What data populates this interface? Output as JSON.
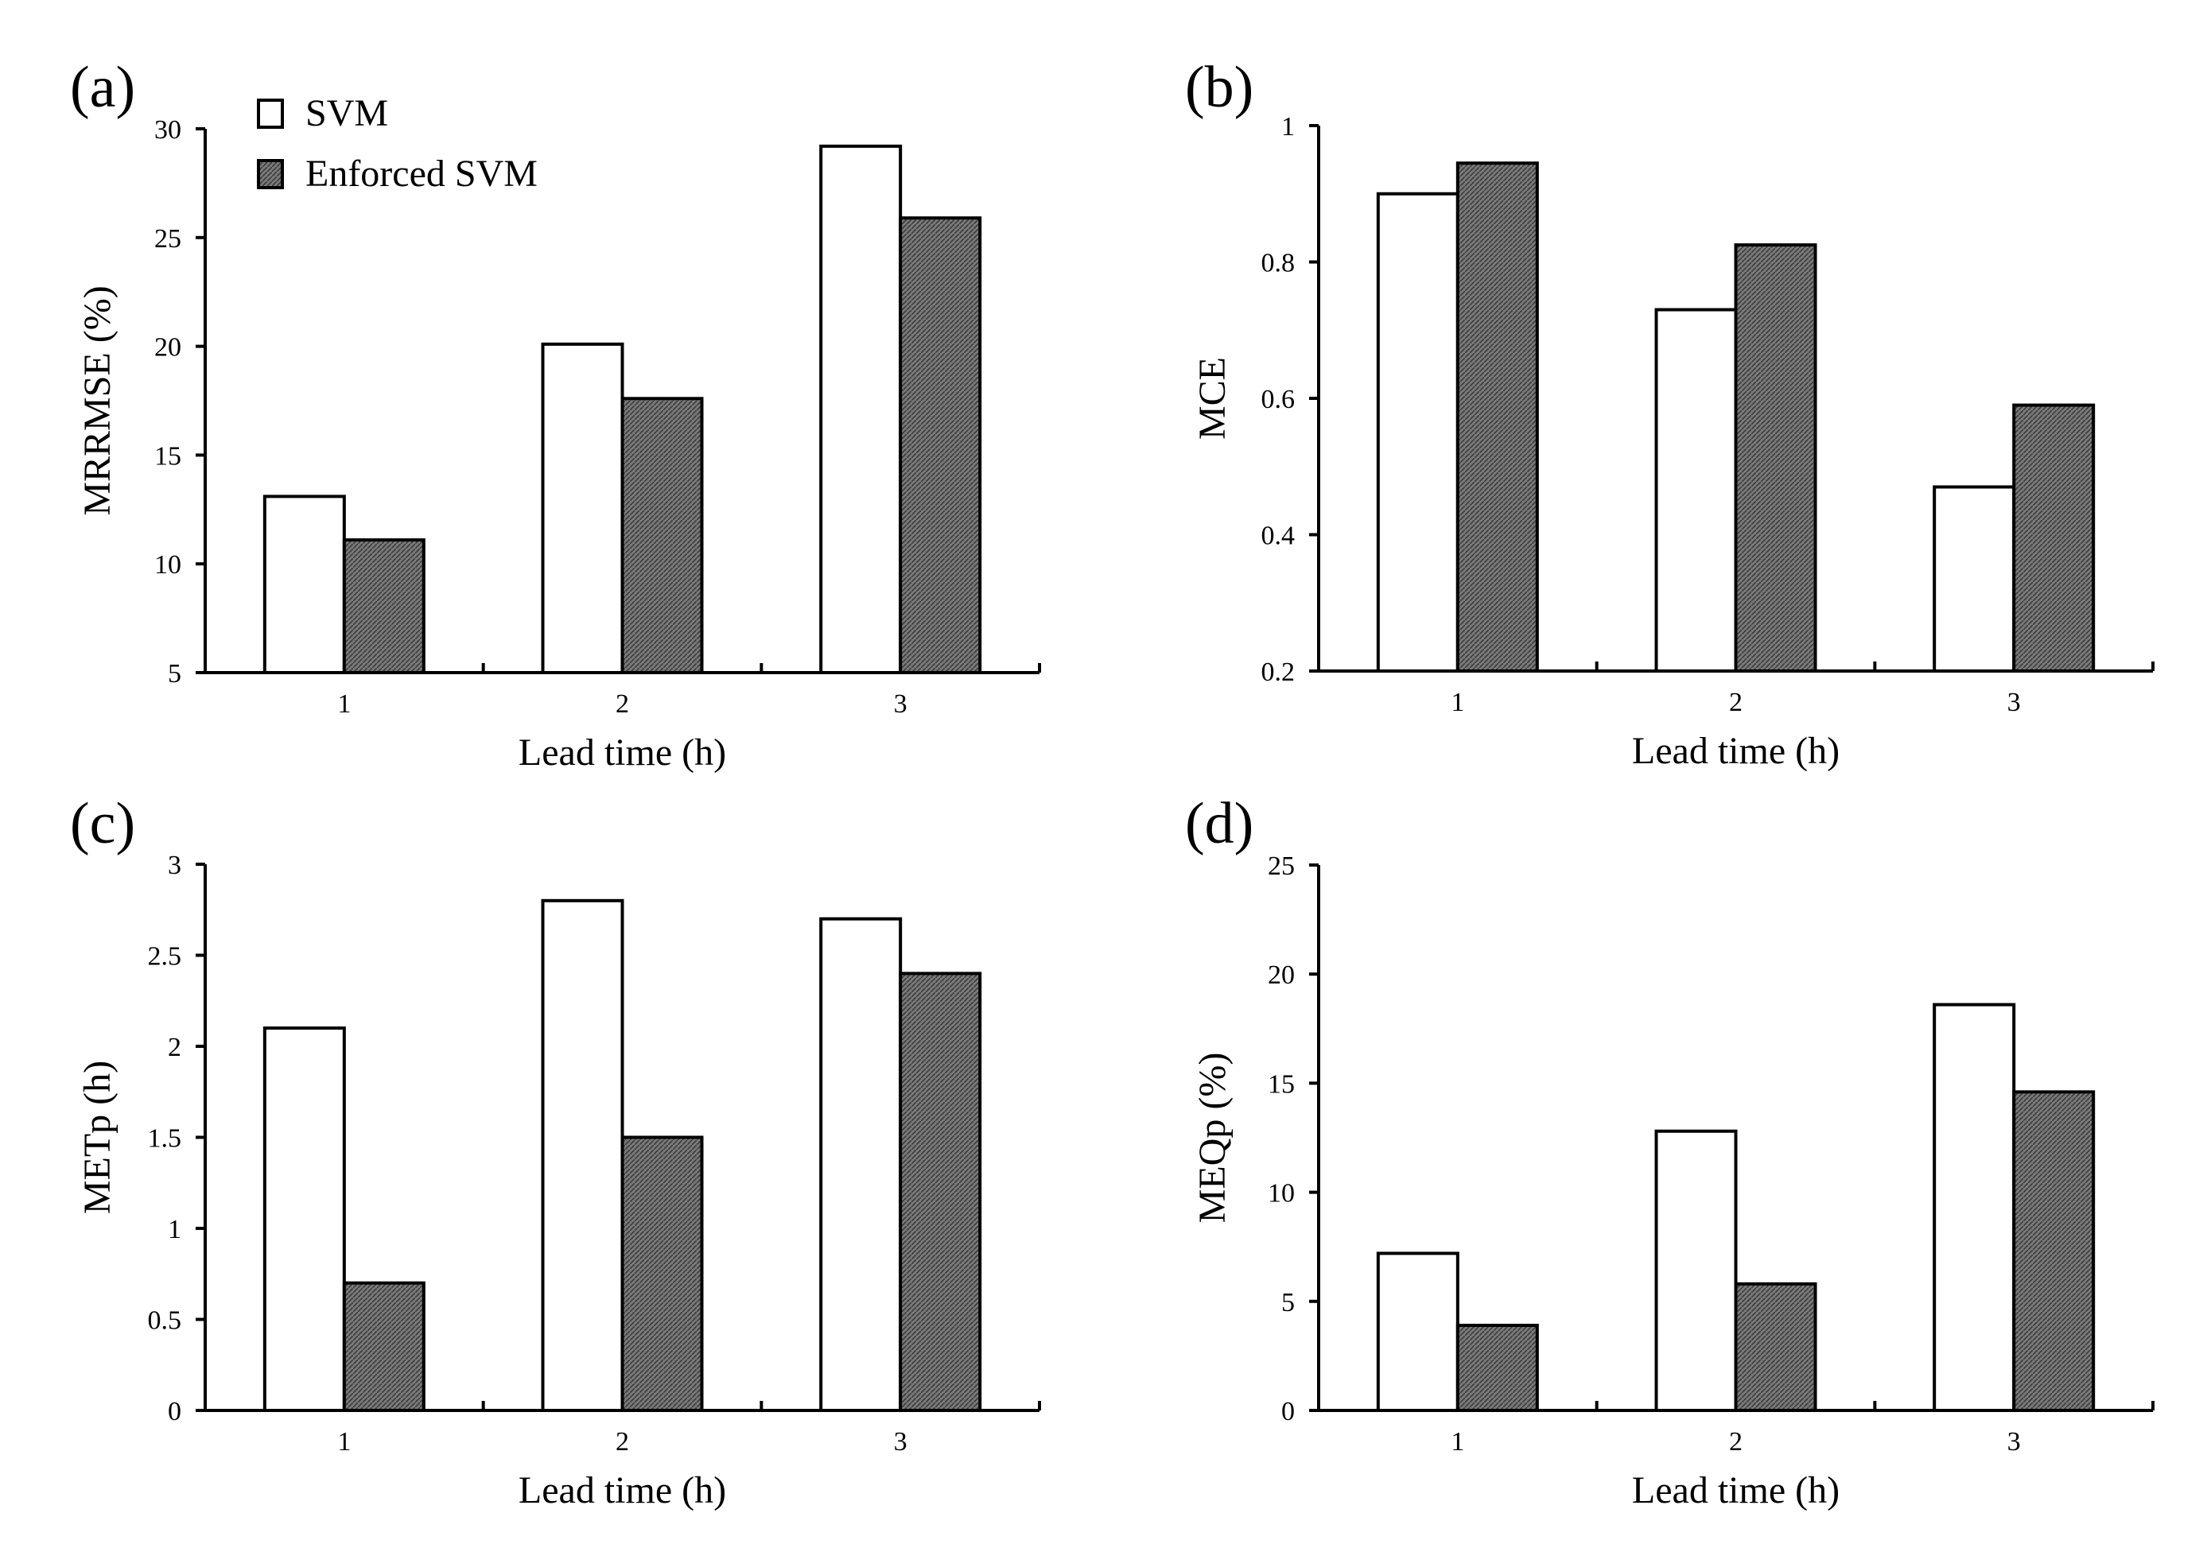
{
  "legend": {
    "svm_label": "SVM",
    "enforced_label": "Enforced SVM"
  },
  "chart_data": [
    {
      "panel": "(a)",
      "type": "bar",
      "categories": [
        "1",
        "2",
        "3"
      ],
      "series": [
        {
          "name": "SVM",
          "values": [
            13.1,
            20.1,
            29.2
          ]
        },
        {
          "name": "Enforced SVM",
          "values": [
            11.1,
            17.6,
            25.9
          ]
        }
      ],
      "xlabel": "Lead time (h)",
      "ylabel": "MRRMSE (%)",
      "ylim": [
        5,
        30
      ],
      "yticks": [
        "5",
        "10",
        "15",
        "20",
        "25",
        "30"
      ],
      "legend": "top-left"
    },
    {
      "panel": "(b)",
      "type": "bar",
      "categories": [
        "1",
        "2",
        "3"
      ],
      "series": [
        {
          "name": "SVM",
          "values": [
            0.9,
            0.73,
            0.47
          ]
        },
        {
          "name": "Enforced SVM",
          "values": [
            0.945,
            0.825,
            0.59
          ]
        }
      ],
      "xlabel": "Lead time (h)",
      "ylabel": "MCE",
      "ylim": [
        0.2,
        1
      ],
      "yticks": [
        "0.2",
        "0.4",
        "0.6",
        "0.8",
        "1"
      ]
    },
    {
      "panel": "(c)",
      "type": "bar",
      "categories": [
        "1",
        "2",
        "3"
      ],
      "series": [
        {
          "name": "SVM",
          "values": [
            2.1,
            2.8,
            2.7
          ]
        },
        {
          "name": "Enforced SVM",
          "values": [
            0.7,
            1.5,
            2.4
          ]
        }
      ],
      "xlabel": "Lead time (h)",
      "ylabel": "METp (h)",
      "ylim": [
        0,
        3
      ],
      "yticks": [
        "0",
        "0.5",
        "1",
        "1.5",
        "2",
        "2.5",
        "3"
      ]
    },
    {
      "panel": "(d)",
      "type": "bar",
      "categories": [
        "1",
        "2",
        "3"
      ],
      "series": [
        {
          "name": "SVM",
          "values": [
            7.2,
            12.8,
            18.6
          ]
        },
        {
          "name": "Enforced SVM",
          "values": [
            3.9,
            5.8,
            14.6
          ]
        }
      ],
      "xlabel": "Lead time (h)",
      "ylabel": "MEQp (%)",
      "ylim": [
        0,
        25
      ],
      "yticks": [
        "0",
        "5",
        "10",
        "15",
        "20",
        "25"
      ]
    }
  ]
}
